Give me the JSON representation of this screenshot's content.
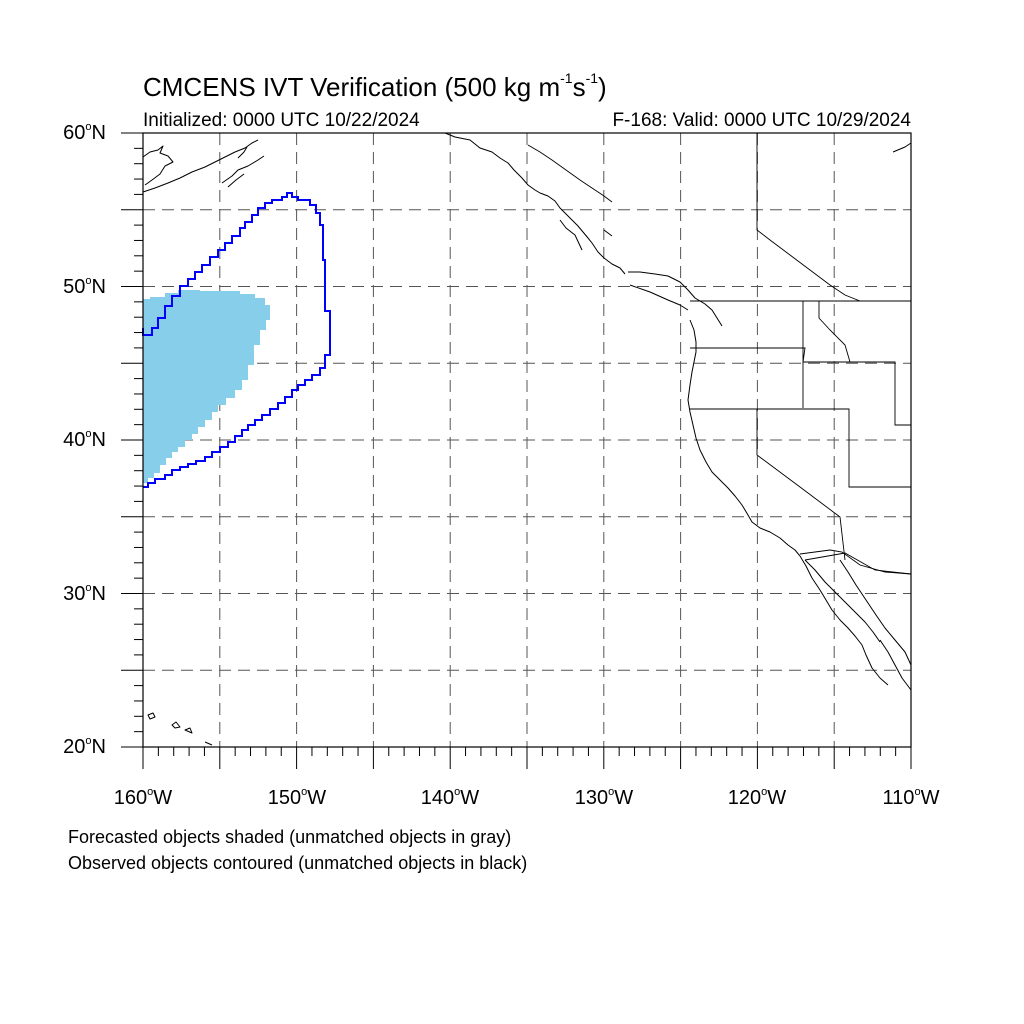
{
  "title": {
    "prefix": "CMCENS IVT Verification (500 kg m",
    "exp1": "-1",
    "mid": "s",
    "exp2": "-1",
    "suffix": ")"
  },
  "initialized": "Initialized: 0000 UTC 10/22/2024",
  "valid": "F-168: Valid: 0000 UTC 10/29/2024",
  "degree_mark": "o",
  "lat_labels": [
    {
      "num": "60",
      "hemi": "N",
      "value": 60
    },
    {
      "num": "50",
      "hemi": "N",
      "value": 50
    },
    {
      "num": "40",
      "hemi": "N",
      "value": 40
    },
    {
      "num": "30",
      "hemi": "N",
      "value": 30
    },
    {
      "num": "20",
      "hemi": "N",
      "value": 20
    }
  ],
  "lon_labels": [
    {
      "num": "160",
      "hemi": "W",
      "value": -160
    },
    {
      "num": "150",
      "hemi": "W",
      "value": -150
    },
    {
      "num": "140",
      "hemi": "W",
      "value": -140
    },
    {
      "num": "130",
      "hemi": "W",
      "value": -130
    },
    {
      "num": "120",
      "hemi": "W",
      "value": -120
    },
    {
      "num": "110",
      "hemi": "W",
      "value": -110
    }
  ],
  "map": {
    "lon_range": [
      -160,
      -110
    ],
    "lat_range": [
      20,
      60
    ],
    "grid_spacing_deg": 5,
    "grid_style": "dashed",
    "forecast_fill_color": "#87CEEB",
    "observed_contour_color": "#0000FF",
    "coast_color": "#000000"
  },
  "notes": [
    "Forecasted objects shaded (unmatched objects in gray)",
    "Observed objects contoured (unmatched objects in black)"
  ]
}
